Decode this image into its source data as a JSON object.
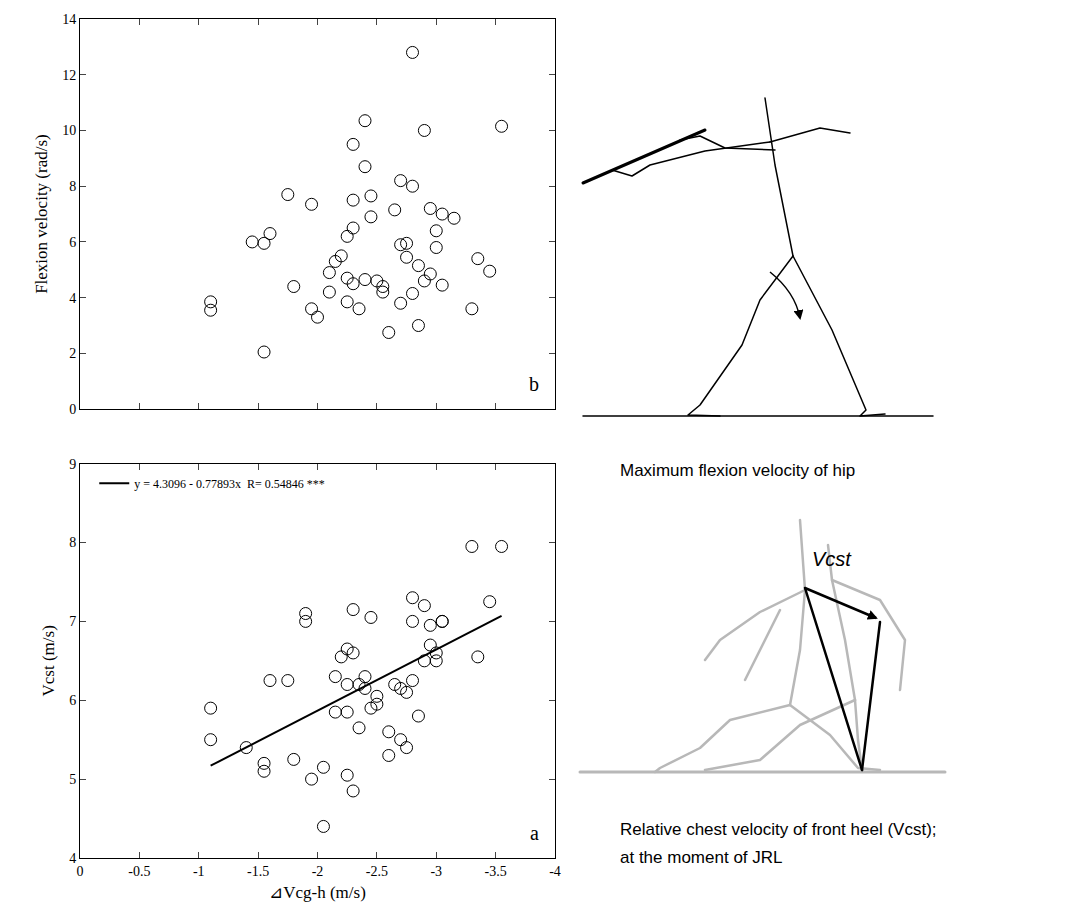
{
  "chart_data": [
    {
      "type": "scatter",
      "y_label": "Flexion velocity (rad/s)",
      "annotations": [
        "b"
      ],
      "xlim": [
        0,
        -4
      ],
      "xticks": [
        0,
        -0.5,
        -1,
        -1.5,
        -2,
        -2.5,
        -3,
        -3.5,
        -4
      ],
      "ylim": [
        0,
        14
      ],
      "yticks": [
        0,
        2,
        4,
        6,
        8,
        10,
        12,
        14
      ],
      "tick_labels": "y",
      "grid": false,
      "series": [
        {
          "type": "scatter",
          "marker": "open circle",
          "color": "#000000",
          "x": [
            -1.1,
            -1.1,
            -1.45,
            -1.55,
            -1.55,
            -1.6,
            -1.75,
            -1.8,
            -1.95,
            -1.95,
            -2.0,
            -2.1,
            -2.1,
            -2.15,
            -2.2,
            -2.25,
            -2.25,
            -2.25,
            -2.3,
            -2.3,
            -2.3,
            -2.3,
            -2.35,
            -2.4,
            -2.4,
            -2.4,
            -2.45,
            -2.45,
            -2.5,
            -2.55,
            -2.55,
            -2.6,
            -2.65,
            -2.7,
            -2.7,
            -2.7,
            -2.75,
            -2.75,
            -2.8,
            -2.8,
            -2.8,
            -2.85,
            -2.85,
            -2.9,
            -2.9,
            -2.95,
            -2.95,
            -3.0,
            -3.0,
            -3.05,
            -3.05,
            -3.15,
            -3.3,
            -3.35,
            -3.45,
            -3.55
          ],
          "values": [
            3.85,
            3.55,
            6.0,
            2.05,
            5.95,
            6.3,
            7.7,
            4.4,
            7.35,
            3.6,
            3.3,
            4.9,
            4.2,
            5.3,
            5.5,
            6.2,
            4.7,
            3.85,
            9.5,
            7.5,
            6.5,
            4.5,
            3.6,
            10.35,
            8.7,
            4.65,
            7.65,
            6.9,
            4.6,
            4.4,
            4.2,
            2.75,
            7.15,
            8.2,
            5.9,
            3.8,
            5.95,
            5.45,
            12.8,
            8.0,
            4.15,
            3.0,
            5.15,
            10.0,
            4.6,
            7.2,
            4.85,
            5.8,
            6.4,
            7.0,
            4.45,
            6.85,
            3.6,
            5.4,
            4.95,
            10.15
          ]
        }
      ]
    },
    {
      "type": "scatter",
      "x_label": "⊿Vcg-h (m/s)",
      "y_label": "Vcst (m/s)",
      "annotations": [
        "a"
      ],
      "xlim": [
        0,
        -4
      ],
      "xticks": [
        0,
        -0.5,
        -1,
        -1.5,
        -2,
        -2.5,
        -3,
        -3.5,
        -4
      ],
      "ylim": [
        4,
        9
      ],
      "yticks": [
        4,
        5,
        6,
        7,
        8,
        9
      ],
      "grid": false,
      "legend": "upper left",
      "series": [
        {
          "type": "scatter",
          "marker": "open circle",
          "color": "#000000",
          "x": [
            -1.1,
            -1.1,
            -1.4,
            -1.55,
            -1.55,
            -1.6,
            -1.75,
            -1.8,
            -1.9,
            -1.9,
            -1.95,
            -2.05,
            -2.05,
            -2.15,
            -2.15,
            -2.2,
            -2.25,
            -2.25,
            -2.25,
            -2.25,
            -2.3,
            -2.3,
            -2.3,
            -2.35,
            -2.35,
            -2.4,
            -2.4,
            -2.45,
            -2.45,
            -2.5,
            -2.5,
            -2.6,
            -2.6,
            -2.65,
            -2.7,
            -2.7,
            -2.75,
            -2.75,
            -2.8,
            -2.8,
            -2.8,
            -2.85,
            -2.9,
            -2.9,
            -2.95,
            -2.95,
            -3.0,
            -3.0,
            -3.05,
            -3.05,
            -3.3,
            -3.35,
            -3.45,
            -3.55
          ],
          "values": [
            5.9,
            5.5,
            5.4,
            5.2,
            5.1,
            6.25,
            6.25,
            5.25,
            7.1,
            7.0,
            5.0,
            5.15,
            4.4,
            5.85,
            6.3,
            6.55,
            6.65,
            6.2,
            5.85,
            5.05,
            7.15,
            4.85,
            6.6,
            6.2,
            5.65,
            6.15,
            6.3,
            7.05,
            5.9,
            6.05,
            5.95,
            5.3,
            5.6,
            6.2,
            5.5,
            6.15,
            5.4,
            6.1,
            6.25,
            7.0,
            7.3,
            5.8,
            7.2,
            6.5,
            6.7,
            6.95,
            6.5,
            6.6,
            7.0,
            7.0,
            7.95,
            6.55,
            7.25,
            7.95
          ]
        },
        {
          "type": "line",
          "name": "y = 4.3096 - 0.77893x  R= 0.54846 ***",
          "color": "#000000",
          "line_style": "solid",
          "x": [
            -1.1,
            -3.55
          ],
          "values": [
            5.17,
            7.07
          ]
        }
      ]
    }
  ],
  "figures": [
    {
      "caption": [
        "Maximum flexion velocity of hip"
      ]
    },
    {
      "label": "Vcst",
      "caption": [
        "Relative chest velocity of front heel (Vcst);",
        "at the moment of JRL"
      ]
    }
  ]
}
